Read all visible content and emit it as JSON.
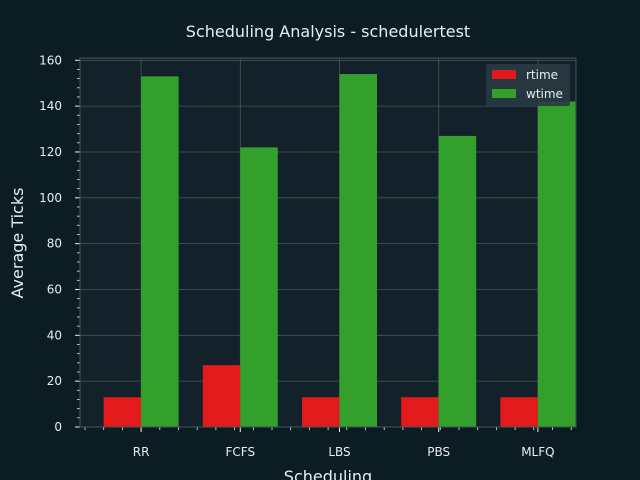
{
  "chart_data": {
    "type": "bar",
    "title": "Scheduling Analysis - schedulertest",
    "xlabel": "Scheduling",
    "ylabel": "Average Ticks",
    "categories": [
      "RR",
      "FCFS",
      "LBS",
      "PBS",
      "MLFQ"
    ],
    "series": [
      {
        "name": "rtime",
        "values": [
          13,
          27,
          13,
          13,
          13
        ],
        "color": "#e31a1c"
      },
      {
        "name": "wtime",
        "values": [
          153,
          122,
          154,
          127,
          142
        ],
        "color": "#33a02c"
      }
    ],
    "ylim": [
      0,
      161
    ],
    "yticks": [
      "0",
      "20",
      "40",
      "60",
      "80",
      "100",
      "120",
      "140",
      "160"
    ],
    "grid": true,
    "legend_position": "top-right",
    "colors": {
      "figure_bg": "#0c1c23",
      "axes_bg": "#13222a",
      "grid": "#46555c",
      "text": "#e8eef0",
      "legend_bg": "#2a3a42"
    }
  }
}
